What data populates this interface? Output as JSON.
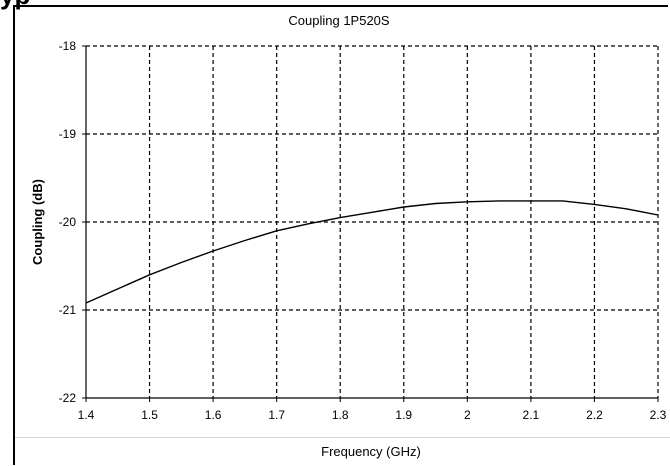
{
  "header_fragment": "yp",
  "chart_data": {
    "type": "line",
    "title": "Coupling 1P520S",
    "xlabel": "Frequency (GHz)",
    "ylabel": "Coupling (dB)",
    "xlim": [
      1.4,
      2.3
    ],
    "ylim": [
      -22,
      -18
    ],
    "x_ticks": [
      "1.4",
      "1.5",
      "1.6",
      "1.7",
      "1.8",
      "1.9",
      "2",
      "2.1",
      "2.2",
      "2.3"
    ],
    "y_ticks": [
      "-18",
      "-19",
      "-20",
      "-21",
      "-22"
    ],
    "grid": true,
    "grid_style": "dashed",
    "line_color": "#000000",
    "series": [
      {
        "x": [
          1.4,
          1.45,
          1.5,
          1.55,
          1.6,
          1.65,
          1.7,
          1.75,
          1.8,
          1.85,
          1.9,
          1.95,
          2.0,
          2.05,
          2.1,
          2.15,
          2.2,
          2.25,
          2.3
        ],
        "y": [
          -20.92,
          -20.76,
          -20.6,
          -20.46,
          -20.33,
          -20.21,
          -20.1,
          -20.02,
          -19.95,
          -19.89,
          -19.83,
          -19.79,
          -19.77,
          -19.76,
          -19.76,
          -19.76,
          -19.8,
          -19.85,
          -19.92
        ]
      }
    ]
  }
}
